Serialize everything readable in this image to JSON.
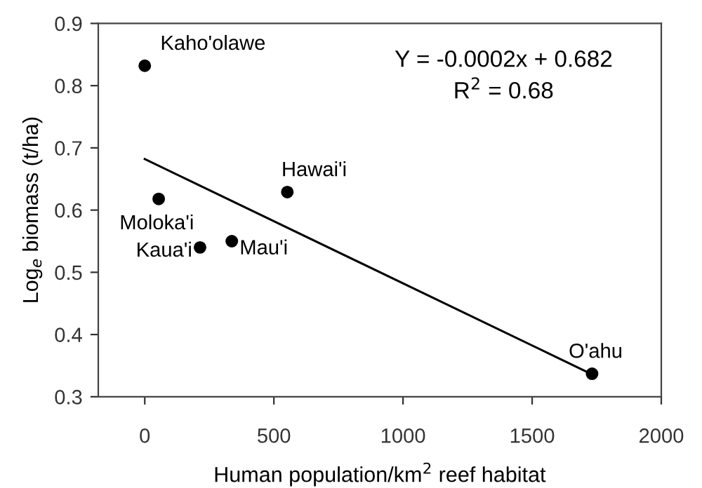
{
  "chart_data": {
    "type": "scatter",
    "xlabel": "Human population/km$^{2}$ reef habitat",
    "ylabel": "Log$_{e}$ biomass (t/ha)",
    "series": [
      {
        "color": "#000000",
        "marker": "circle",
        "x": [
          0,
          54,
          214,
          337,
          552,
          1732
        ],
        "values": [
          0.832,
          0.618,
          0.54,
          0.55,
          0.629,
          0.337
        ]
      },
      {
        "type": "line",
        "color": "#000000",
        "x": [
          0,
          1732
        ],
        "values": [
          0.682,
          0.336
        ]
      }
    ],
    "annotations": [
      {
        "text": "Kaho'olawe",
        "x": 0,
        "y": 0.832
      },
      {
        "text": "Moloka'i",
        "x": 54,
        "y": 0.618
      },
      {
        "text": "Kaua'i",
        "x": 214,
        "y": 0.54
      },
      {
        "text": "Mau'i",
        "x": 337,
        "y": 0.55
      },
      {
        "text": "Hawai'i",
        "x": 552,
        "y": 0.629
      },
      {
        "text": "O'ahu",
        "x": 1732,
        "y": 0.337
      },
      "Y = -0.0002x + 0.682",
      "R$^{2}$ = 0.68"
    ],
    "xlim": [
      -180,
      2000
    ],
    "xticks": [
      0,
      500,
      1000,
      1500,
      2000
    ],
    "ylim": [
      0.3,
      0.9
    ],
    "yticks": [
      0.3,
      0.4,
      0.5,
      0.6,
      0.7,
      0.8,
      0.9
    ],
    "grid": false,
    "legend": false
  }
}
